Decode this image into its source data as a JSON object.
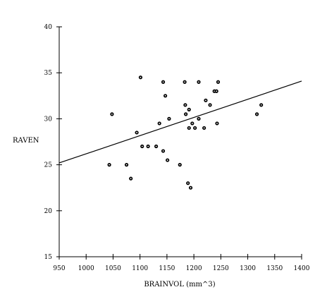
{
  "chart_data": {
    "type": "scatter",
    "title": "",
    "xlabel": "BRAINVOL (mm^3)",
    "ylabel": "RAVEN",
    "xlim": [
      950,
      1400
    ],
    "ylim": [
      15,
      40
    ],
    "x_ticks": [
      950,
      1000,
      1050,
      1100,
      1150,
      1200,
      1250,
      1300,
      1350,
      1400
    ],
    "y_ticks": [
      15,
      20,
      25,
      30,
      35,
      40
    ],
    "grid": false,
    "legend": "none",
    "marker_color": "#000000",
    "series": [
      {
        "points": [
          {
            "x": 1043,
            "y": 25.0
          },
          {
            "x": 1048,
            "y": 30.5
          },
          {
            "x": 1075,
            "y": 25.0
          },
          {
            "x": 1083,
            "y": 23.5
          },
          {
            "x": 1094,
            "y": 28.5
          },
          {
            "x": 1101,
            "y": 34.5
          },
          {
            "x": 1104,
            "y": 27.0
          },
          {
            "x": 1115,
            "y": 27.0
          },
          {
            "x": 1130,
            "y": 27.0
          },
          {
            "x": 1136,
            "y": 29.5
          },
          {
            "x": 1143,
            "y": 34.0
          },
          {
            "x": 1143,
            "y": 26.5
          },
          {
            "x": 1147,
            "y": 32.5
          },
          {
            "x": 1151,
            "y": 25.5
          },
          {
            "x": 1154,
            "y": 30.0
          },
          {
            "x": 1174,
            "y": 25.0
          },
          {
            "x": 1183,
            "y": 34.0
          },
          {
            "x": 1184,
            "y": 31.5
          },
          {
            "x": 1185,
            "y": 30.5
          },
          {
            "x": 1189,
            "y": 23.0
          },
          {
            "x": 1191,
            "y": 31.0
          },
          {
            "x": 1191,
            "y": 29.0
          },
          {
            "x": 1194,
            "y": 22.5
          },
          {
            "x": 1197,
            "y": 29.5
          },
          {
            "x": 1202,
            "y": 29.0
          },
          {
            "x": 1209,
            "y": 34.0
          },
          {
            "x": 1209,
            "y": 30.0
          },
          {
            "x": 1219,
            "y": 29.0
          },
          {
            "x": 1222,
            "y": 32.0
          },
          {
            "x": 1230,
            "y": 31.5
          },
          {
            "x": 1238,
            "y": 33.0
          },
          {
            "x": 1242,
            "y": 33.0
          },
          {
            "x": 1243,
            "y": 29.5
          },
          {
            "x": 1245,
            "y": 34.0
          },
          {
            "x": 1317,
            "y": 30.5
          },
          {
            "x": 1325,
            "y": 31.5
          }
        ]
      }
    ],
    "fit_line": {
      "x": [
        950,
        1400
      ],
      "y": [
        25.2,
        34.1
      ]
    }
  }
}
